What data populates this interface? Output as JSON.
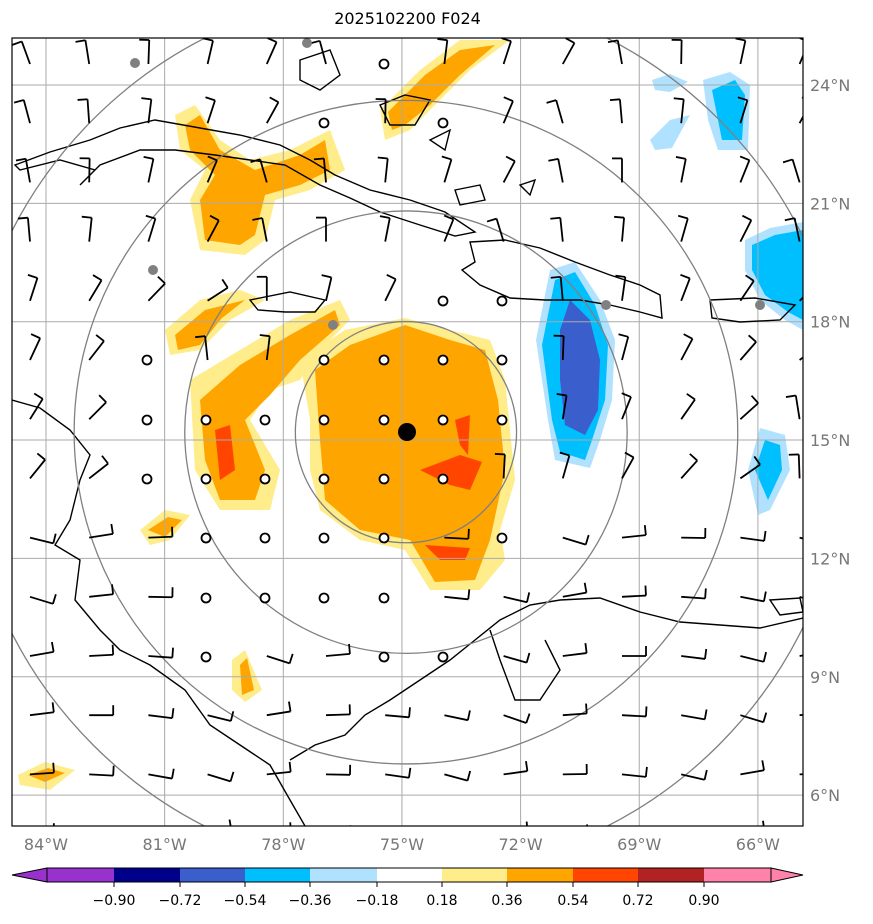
{
  "title": "2025102200 F024",
  "map": {
    "lon_labels": [
      "84°W",
      "81°W",
      "78°W",
      "75°W",
      "72°W",
      "69°W",
      "66°W"
    ],
    "lat_labels": [
      "24°N",
      "21°N",
      "18°N",
      "15°N",
      "12°N",
      "9°N",
      "6°N"
    ],
    "storm_center": {
      "lon": -75.0,
      "lat": 15.2
    },
    "range_rings_deg": [
      2.8,
      5.6,
      8.4,
      11.2
    ]
  },
  "chart_data": {
    "type": "contour-map",
    "title": "2025102200 F024",
    "colorbar": {
      "levels": [
        -0.9,
        -0.72,
        -0.54,
        -0.36,
        -0.18,
        0.18,
        0.36,
        0.54,
        0.72,
        0.9
      ],
      "tick_labels": [
        "−0.90",
        "−0.72",
        "−0.54",
        "−0.36",
        "−0.18",
        "0.18",
        "0.36",
        "0.54",
        "0.72",
        "0.90"
      ],
      "colors": [
        "#9932CC",
        "#00008B",
        "#3A5FCD",
        "#00BFFF",
        "#B0E2FF",
        "#FFFFFF",
        "#FFEC8B",
        "#FFA500",
        "#FF4500",
        "#B22222",
        "#FF82AB"
      ],
      "extend": "both"
    },
    "xlim": [
      -84.9,
      -64.9
    ],
    "ylim": [
      5.0,
      25.0
    ]
  }
}
